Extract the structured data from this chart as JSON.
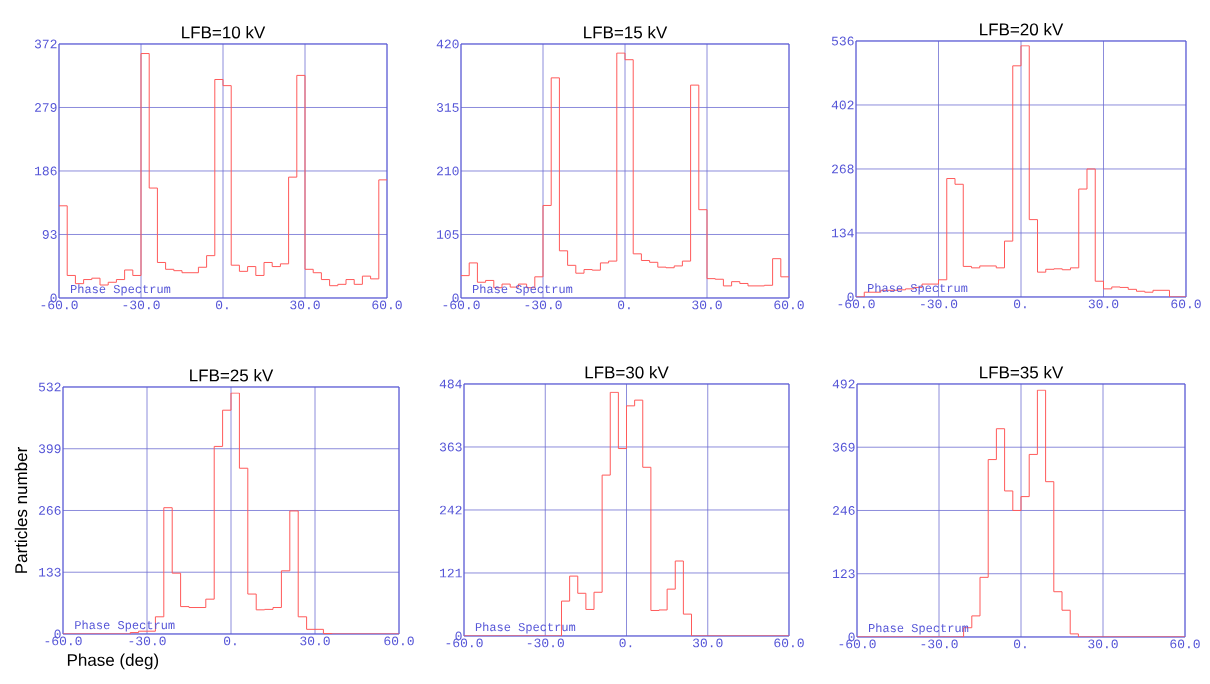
{
  "chart_data": [
    {
      "type": "histogram",
      "title": "LFB=10 kV",
      "annotations": [
        "Phase Spectrum"
      ],
      "color": "#ff5a5a",
      "grid": true,
      "bins": [
        -60,
        -57,
        -54,
        -51,
        -48,
        -45,
        -42,
        -39,
        -36,
        -33,
        -30,
        -27,
        -24,
        -21,
        -18,
        -15,
        -12,
        -9,
        -6,
        -3,
        0,
        3,
        6,
        9,
        12,
        15,
        18,
        21,
        24,
        27,
        30,
        33,
        36,
        39,
        42,
        45,
        48,
        51,
        54,
        57,
        60
      ],
      "values": [
        135,
        33,
        21,
        27,
        29,
        19,
        23,
        27,
        41,
        33,
        358,
        161,
        52,
        42,
        40,
        37,
        37,
        45,
        62,
        320,
        311,
        48,
        39,
        46,
        33,
        52,
        46,
        50,
        177,
        326,
        42,
        37,
        27,
        18,
        20,
        27,
        20,
        32,
        28,
        173
      ],
      "xlim": [
        -60,
        60
      ],
      "ylim": [
        0,
        372
      ],
      "xticks": [
        {
          "value": -60,
          "label": "-60.0"
        },
        {
          "value": -30,
          "label": "-30.0"
        },
        {
          "value": 0,
          "label": "0."
        },
        {
          "value": 30,
          "label": "30.0"
        },
        {
          "value": 60,
          "label": "60.0"
        }
      ],
      "yticks": [
        0,
        93,
        186,
        279,
        372
      ]
    },
    {
      "type": "histogram",
      "title": "LFB=15 kV",
      "annotations": [
        "Phase Spectrum"
      ],
      "color": "#ff5a5a",
      "grid": true,
      "bins": [
        -60,
        -57,
        -54,
        -51,
        -48,
        -45,
        -42,
        -39,
        -36,
        -33,
        -30,
        -27,
        -24,
        -21,
        -18,
        -15,
        -12,
        -9,
        -6,
        -3,
        0,
        3,
        6,
        9,
        12,
        15,
        18,
        21,
        24,
        27,
        30,
        33,
        36,
        39,
        42,
        45,
        48,
        51,
        54,
        57,
        60
      ],
      "values": [
        37,
        58,
        26,
        29,
        17,
        23,
        18,
        23,
        17,
        35,
        153,
        364,
        78,
        54,
        41,
        47,
        46,
        58,
        61,
        405,
        394,
        73,
        62,
        59,
        51,
        50,
        53,
        61,
        352,
        146,
        32,
        31,
        20,
        27,
        24,
        20,
        20,
        21,
        65,
        35
      ],
      "xlim": [
        -60,
        60
      ],
      "ylim": [
        0,
        420
      ],
      "xticks": [
        {
          "value": -60,
          "label": "-60.0"
        },
        {
          "value": -30,
          "label": "-30.0"
        },
        {
          "value": 0,
          "label": "0."
        },
        {
          "value": 30,
          "label": "30.0"
        },
        {
          "value": 60,
          "label": "60.0"
        }
      ],
      "yticks": [
        0,
        105,
        210,
        315,
        420
      ]
    },
    {
      "type": "histogram",
      "title": "LFB=20 kV",
      "annotations": [
        "Phase Spectrum"
      ],
      "color": "#ff5a5a",
      "grid": true,
      "bins": [
        -60,
        -57,
        -54,
        -51,
        -48,
        -45,
        -42,
        -39,
        -36,
        -33,
        -30,
        -27,
        -24,
        -21,
        -18,
        -15,
        -12,
        -9,
        -6,
        -3,
        0,
        3,
        6,
        9,
        12,
        15,
        18,
        21,
        24,
        27,
        30,
        33,
        36,
        39,
        42,
        45,
        48,
        51,
        54,
        57,
        60
      ],
      "values": [
        0,
        10,
        10,
        14,
        14,
        15,
        17,
        20,
        27,
        27,
        36,
        248,
        236,
        64,
        61,
        65,
        65,
        61,
        117,
        484,
        526,
        162,
        52,
        58,
        59,
        57,
        61,
        226,
        268,
        33,
        17,
        21,
        20,
        16,
        12,
        10,
        14,
        14,
        0,
        0
      ],
      "xlim": [
        -60,
        60
      ],
      "ylim": [
        0,
        536
      ],
      "xticks": [
        {
          "value": -60,
          "label": "-60.0"
        },
        {
          "value": -30,
          "label": "-30.0"
        },
        {
          "value": 0,
          "label": "0."
        },
        {
          "value": 30,
          "label": "30.0"
        },
        {
          "value": 60,
          "label": "60.0"
        }
      ],
      "yticks": [
        0,
        134,
        268,
        402,
        536
      ]
    },
    {
      "type": "histogram",
      "title": "LFB=25 kV",
      "xlabel": "Phase (deg)",
      "ylabel": "Particles number",
      "annotations": [
        "Phase Spectrum"
      ],
      "color": "#ff5a5a",
      "grid": true,
      "bins": [
        -60,
        -57,
        -54,
        -51,
        -48,
        -45,
        -42,
        -39,
        -36,
        -33,
        -30,
        -27,
        -24,
        -21,
        -18,
        -15,
        -12,
        -9,
        -6,
        -3,
        0,
        3,
        6,
        9,
        12,
        15,
        18,
        21,
        24,
        27,
        30,
        33,
        36,
        39,
        42,
        45,
        48,
        51,
        54,
        57,
        60
      ],
      "values": [
        0,
        0,
        0,
        0,
        0,
        0,
        0,
        0,
        3,
        6,
        6,
        37,
        272,
        131,
        59,
        57,
        57,
        75,
        404,
        482,
        519,
        357,
        86,
        52,
        53,
        57,
        136,
        265,
        37,
        10,
        10,
        1,
        0,
        0,
        0,
        0,
        0,
        0,
        0,
        0
      ],
      "xlim": [
        -60,
        60
      ],
      "ylim": [
        0,
        532
      ],
      "xticks": [
        {
          "value": -60,
          "label": "-60.0"
        },
        {
          "value": -30,
          "label": "-30.0"
        },
        {
          "value": 0,
          "label": "0."
        },
        {
          "value": 30,
          "label": "30.0"
        },
        {
          "value": 60,
          "label": "60.0"
        }
      ],
      "yticks": [
        0,
        133,
        266,
        399,
        532
      ]
    },
    {
      "type": "histogram",
      "title": "LFB=30 kV",
      "annotations": [
        "Phase Spectrum"
      ],
      "color": "#ff5a5a",
      "grid": true,
      "bins": [
        -60,
        -57,
        -54,
        -51,
        -48,
        -45,
        -42,
        -39,
        -36,
        -33,
        -30,
        -27,
        -24,
        -21,
        -18,
        -15,
        -12,
        -9,
        -6,
        -3,
        0,
        3,
        6,
        9,
        12,
        15,
        18,
        21,
        24,
        27,
        30,
        33,
        36,
        39,
        42,
        45,
        48,
        51,
        54,
        57,
        60
      ],
      "values": [
        0,
        0,
        0,
        0,
        0,
        0,
        0,
        0,
        0,
        0,
        0,
        0,
        67,
        115,
        82,
        51,
        84,
        309,
        468,
        360,
        442,
        453,
        324,
        49,
        50,
        90,
        144,
        42,
        0,
        0,
        0,
        0,
        0,
        0,
        0,
        0,
        0,
        0,
        0,
        0
      ],
      "xlim": [
        -60,
        60
      ],
      "ylim": [
        0,
        484
      ],
      "xticks": [
        {
          "value": -60,
          "label": "-60.0"
        },
        {
          "value": -30,
          "label": "-30.0"
        },
        {
          "value": 0,
          "label": "0."
        },
        {
          "value": 30,
          "label": "30.0"
        },
        {
          "value": 60,
          "label": "60.0"
        }
      ],
      "yticks": [
        0,
        121,
        242,
        363,
        484
      ]
    },
    {
      "type": "histogram",
      "title": "LFB=35 kV",
      "annotations": [
        "Phase Spectrum"
      ],
      "color": "#ff5a5a",
      "grid": true,
      "bins": [
        -60,
        -57,
        -54,
        -51,
        -48,
        -45,
        -42,
        -39,
        -36,
        -33,
        -30,
        -27,
        -24,
        -21,
        -18,
        -15,
        -12,
        -9,
        -6,
        -3,
        0,
        3,
        6,
        9,
        12,
        15,
        18,
        21,
        24,
        27,
        30,
        33,
        36,
        39,
        42,
        45,
        48,
        51,
        54,
        57,
        60
      ],
      "values": [
        0,
        0,
        0,
        0,
        0,
        0,
        0,
        0,
        0,
        0,
        0,
        0,
        0,
        18,
        41,
        116,
        345,
        405,
        284,
        246,
        273,
        355,
        480,
        302,
        88,
        52,
        6,
        0,
        0,
        0,
        0,
        0,
        0,
        0,
        0,
        0,
        0,
        0,
        0,
        0
      ],
      "xlim": [
        -60,
        60
      ],
      "ylim": [
        0,
        492
      ],
      "xticks": [
        {
          "value": -60,
          "label": "-60.0"
        },
        {
          "value": -30,
          "label": "-30.0"
        },
        {
          "value": 0,
          "label": "0."
        },
        {
          "value": 30,
          "label": "30.0"
        },
        {
          "value": 60,
          "label": "60.0"
        }
      ],
      "yticks": [
        0,
        123,
        246,
        369,
        492
      ]
    }
  ]
}
